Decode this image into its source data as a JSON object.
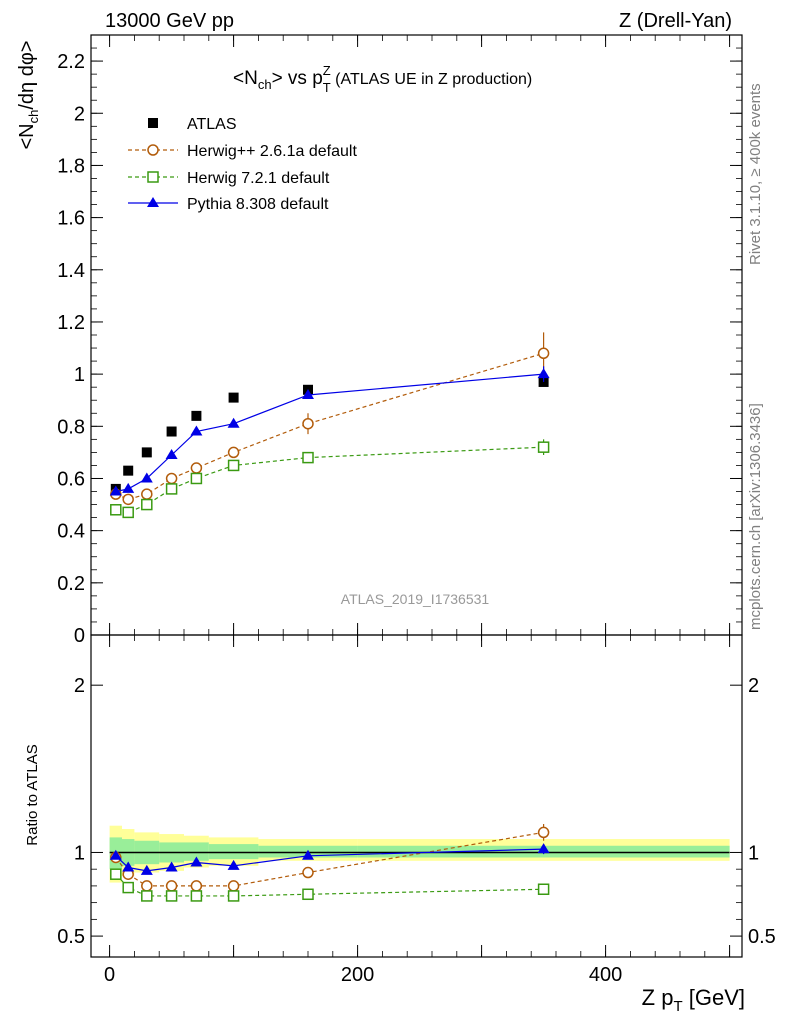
{
  "header": {
    "left": "13000 GeV pp",
    "right": "Z (Drell-Yan)"
  },
  "side_labels": {
    "rivet": "Rivet 3.1.10, ≥ 400k events",
    "mcplots": "mcplots.cern.ch [arXiv:1306.3436]"
  },
  "watermark": "ATLAS_2019_I1736531",
  "chart_data": [
    {
      "type": "scatter",
      "title_main": "<N",
      "title_sub": "ch",
      "title_mid": "> vs p",
      "title_sup": "Z",
      "title_sub2": "T",
      "title_tail": " (ATLAS UE in Z production)",
      "ylabel": "<N_ch/dη dφ>",
      "xlim": [
        -15,
        510
      ],
      "ylim": [
        0,
        2.3
      ],
      "yticks": [
        "0",
        "0.2",
        "0.4",
        "0.6",
        "0.8",
        "1",
        "1.2",
        "1.4",
        "1.6",
        "1.8",
        "2",
        "2.2"
      ],
      "ytick_values": [
        0,
        0.2,
        0.4,
        0.6,
        0.8,
        1.0,
        1.2,
        1.4,
        1.6,
        1.8,
        2.0,
        2.2
      ],
      "legend_position": "top-left",
      "x": [
        5,
        15,
        30,
        50,
        70,
        100,
        160,
        350
      ],
      "series": [
        {
          "name": "ATLAS",
          "marker": "square-filled",
          "color": "#000000",
          "line": "none",
          "values": [
            0.56,
            0.63,
            0.7,
            0.78,
            0.84,
            0.91,
            0.94,
            0.97
          ]
        },
        {
          "name": "Herwig++ 2.6.1a default",
          "marker": "circle-open",
          "color": "#b25c0b",
          "line": "dashed",
          "values": [
            0.54,
            0.52,
            0.54,
            0.6,
            0.64,
            0.7,
            0.81,
            1.08
          ],
          "errors": [
            0.01,
            0.01,
            0.01,
            0.015,
            0.015,
            0.02,
            0.04,
            0.08
          ]
        },
        {
          "name": "Herwig 7.2.1 default",
          "marker": "square-open",
          "color": "#3a9a12",
          "line": "dashed",
          "values": [
            0.48,
            0.47,
            0.5,
            0.56,
            0.6,
            0.65,
            0.68,
            0.72
          ],
          "errors": [
            0.01,
            0.01,
            0.01,
            0.01,
            0.01,
            0.01,
            0.01,
            0.03
          ]
        },
        {
          "name": "Pythia 8.308 default",
          "marker": "triangle-filled",
          "color": "#0000e6",
          "line": "solid",
          "values": [
            0.55,
            0.56,
            0.6,
            0.69,
            0.78,
            0.81,
            0.92,
            1.0
          ],
          "errors": [
            0.005,
            0.005,
            0.005,
            0.01,
            0.01,
            0.01,
            0.01,
            0.03
          ]
        }
      ]
    },
    {
      "type": "scatter",
      "ylabel": "Ratio to ATLAS",
      "xlabel_main": "Z p",
      "xlabel_sub": "T",
      "xlabel_tail": " [GeV]",
      "xlim": [
        -15,
        510
      ],
      "ylim": [
        0.375,
        2.3
      ],
      "xticks": [
        "0",
        "200",
        "400"
      ],
      "xtick_values": [
        0,
        200,
        400
      ],
      "yticks": [
        "0.5",
        "1",
        "2"
      ],
      "ytick_values": [
        0.5,
        1,
        2
      ],
      "bands": {
        "x_edges": [
          0,
          10,
          20,
          40,
          60,
          80,
          120,
          200,
          500
        ],
        "yellow_lo": [
          0.82,
          0.86,
          0.88,
          0.89,
          0.91,
          0.92,
          0.95,
          0.95
        ],
        "yellow_hi": [
          1.16,
          1.14,
          1.12,
          1.11,
          1.1,
          1.09,
          1.08,
          1.08
        ],
        "green_lo": [
          0.9,
          0.92,
          0.93,
          0.94,
          0.95,
          0.96,
          0.97,
          0.97
        ],
        "green_hi": [
          1.09,
          1.08,
          1.07,
          1.06,
          1.06,
          1.05,
          1.04,
          1.04
        ]
      },
      "x": [
        5,
        15,
        30,
        50,
        70,
        100,
        160,
        350
      ],
      "series": [
        {
          "name": "Herwig++ 2.6.1a default",
          "marker": "circle-open",
          "color": "#b25c0b",
          "line": "dashed",
          "values": [
            0.97,
            0.87,
            0.8,
            0.8,
            0.8,
            0.8,
            0.88,
            1.12
          ],
          "errors": [
            0.01,
            0.01,
            0.01,
            0.015,
            0.015,
            0.02,
            0.03,
            0.05
          ]
        },
        {
          "name": "Herwig 7.2.1 default",
          "marker": "square-open",
          "color": "#3a9a12",
          "line": "dashed",
          "values": [
            0.87,
            0.79,
            0.74,
            0.74,
            0.74,
            0.74,
            0.75,
            0.78
          ],
          "errors": [
            0.01,
            0.01,
            0.01,
            0.01,
            0.01,
            0.01,
            0.01,
            0.02
          ]
        },
        {
          "name": "Pythia 8.308 default",
          "marker": "triangle-filled",
          "color": "#0000e6",
          "line": "solid",
          "values": [
            0.98,
            0.91,
            0.89,
            0.91,
            0.94,
            0.92,
            0.98,
            1.02
          ],
          "errors": [
            0.005,
            0.005,
            0.005,
            0.01,
            0.01,
            0.01,
            0.01,
            0.03
          ]
        }
      ]
    }
  ]
}
